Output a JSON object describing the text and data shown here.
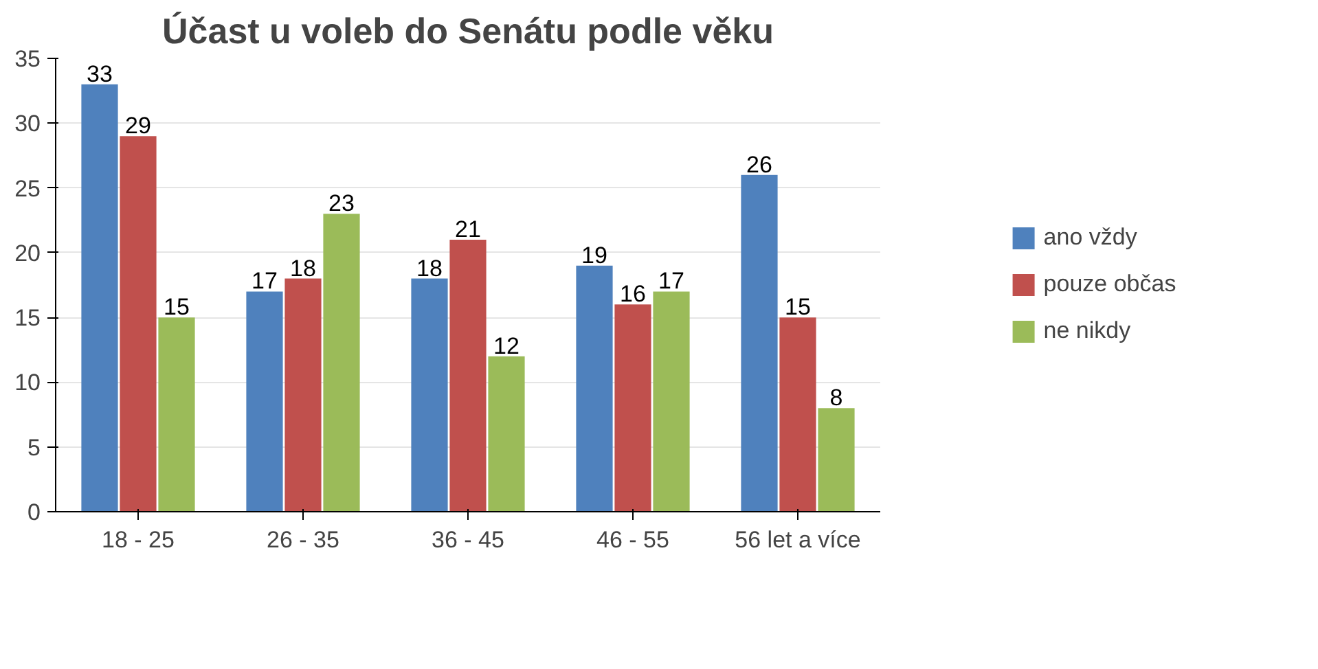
{
  "chart_data": {
    "type": "bar",
    "title": "Účast u voleb do Senátu podle věku",
    "categories": [
      "18 - 25",
      "26 - 35",
      "36 - 45",
      "46 - 55",
      "56 let a více"
    ],
    "series": [
      {
        "name": "ano vždy",
        "color": "#4f81bd",
        "values": [
          33,
          17,
          18,
          19,
          26
        ]
      },
      {
        "name": "pouze občas",
        "color": "#c0504d",
        "values": [
          29,
          18,
          21,
          16,
          15
        ]
      },
      {
        "name": "ne nikdy",
        "color": "#9bbb59",
        "values": [
          15,
          23,
          12,
          17,
          8
        ]
      }
    ],
    "ylim": [
      0,
      35
    ],
    "yticks": [
      0,
      5,
      10,
      15,
      20,
      25,
      30,
      35
    ],
    "grid": "y",
    "legend": "right",
    "data_labels": true
  }
}
